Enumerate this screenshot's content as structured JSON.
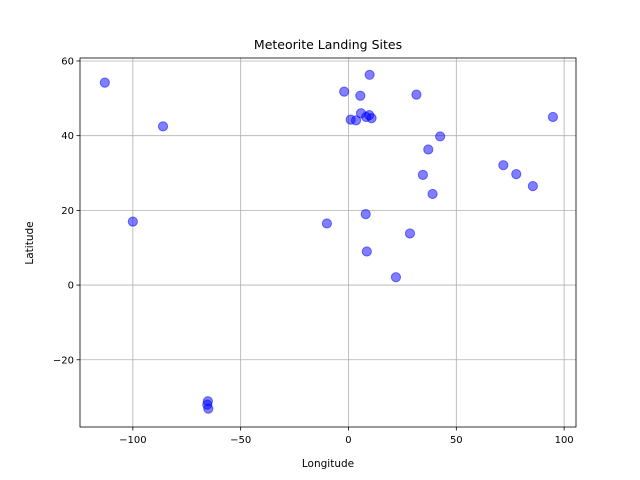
{
  "chart_data": {
    "type": "scatter",
    "title": "Meteorite Landing Sites",
    "xlabel": "Longitude",
    "ylabel": "Latitude",
    "xlim": [
      -124.5,
      105.5
    ],
    "ylim": [
      -38.0,
      60.8
    ],
    "xticks": [
      -100,
      -50,
      0,
      50,
      100
    ],
    "yticks": [
      -20,
      0,
      20,
      40,
      60
    ],
    "xtick_labels": [
      "−100",
      "−50",
      "0",
      "50",
      "100"
    ],
    "ytick_labels": [
      "−20",
      "0",
      "20",
      "40",
      "60"
    ],
    "grid": true,
    "marker_color": "#0000ff",
    "marker_alpha": 0.5,
    "points": [
      {
        "x": -113.0,
        "y": 54.2
      },
      {
        "x": -86.0,
        "y": 42.5
      },
      {
        "x": -100.0,
        "y": 17.0
      },
      {
        "x": -65.2,
        "y": -31.1
      },
      {
        "x": -65.5,
        "y": -32.0
      },
      {
        "x": -65.0,
        "y": -33.1
      },
      {
        "x": -10.0,
        "y": 16.5
      },
      {
        "x": -2.0,
        "y": 51.8
      },
      {
        "x": 1.0,
        "y": 44.3
      },
      {
        "x": 3.5,
        "y": 44.1
      },
      {
        "x": 5.5,
        "y": 50.7
      },
      {
        "x": 5.8,
        "y": 46.0
      },
      {
        "x": 8.2,
        "y": 45.0
      },
      {
        "x": 9.6,
        "y": 45.5
      },
      {
        "x": 10.7,
        "y": 44.7
      },
      {
        "x": 9.8,
        "y": 56.3
      },
      {
        "x": 8.0,
        "y": 19.0
      },
      {
        "x": 8.5,
        "y": 9.0
      },
      {
        "x": 22.0,
        "y": 2.1
      },
      {
        "x": 28.5,
        "y": 13.8
      },
      {
        "x": 31.5,
        "y": 51.0
      },
      {
        "x": 34.5,
        "y": 29.5
      },
      {
        "x": 37.0,
        "y": 36.3
      },
      {
        "x": 39.0,
        "y": 24.4
      },
      {
        "x": 42.5,
        "y": 39.8
      },
      {
        "x": 71.8,
        "y": 32.1
      },
      {
        "x": 77.8,
        "y": 29.7
      },
      {
        "x": 85.5,
        "y": 26.5
      },
      {
        "x": 94.8,
        "y": 45.0
      }
    ]
  }
}
